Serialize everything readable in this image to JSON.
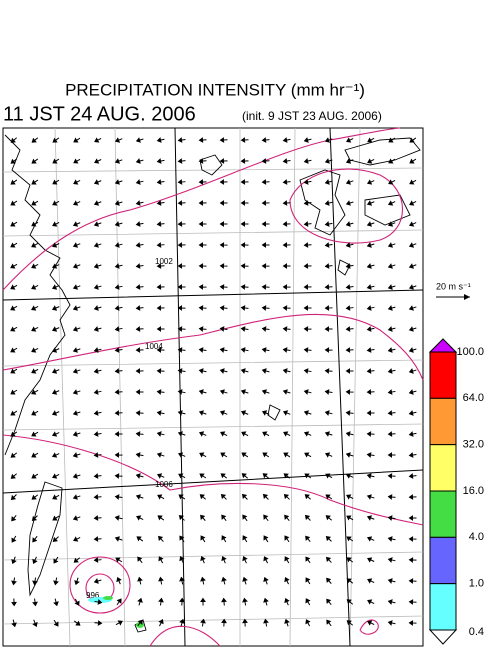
{
  "header": {
    "title": "PRECIPITATION INTENSITY (mm hr⁻¹)",
    "valid_time": "11 JST 24 AUG. 2006",
    "init_time": "(init. 9 JST 23 AUG. 2006)"
  },
  "reference_vector": {
    "label": "20 m s⁻¹"
  },
  "contours": {
    "labels": [
      "1002",
      "1004",
      "1006",
      "996"
    ]
  },
  "colorbar": {
    "labels": [
      "100.0",
      "64.0",
      "32.0",
      "16.0",
      "4.0",
      "1.0",
      "0.4"
    ],
    "colors": [
      "#cc00ff",
      "#ff0000",
      "#ff9933",
      "#ffff66",
      "#44dd44",
      "#6666ff",
      "#66ffff",
      "#ffffff"
    ]
  }
}
